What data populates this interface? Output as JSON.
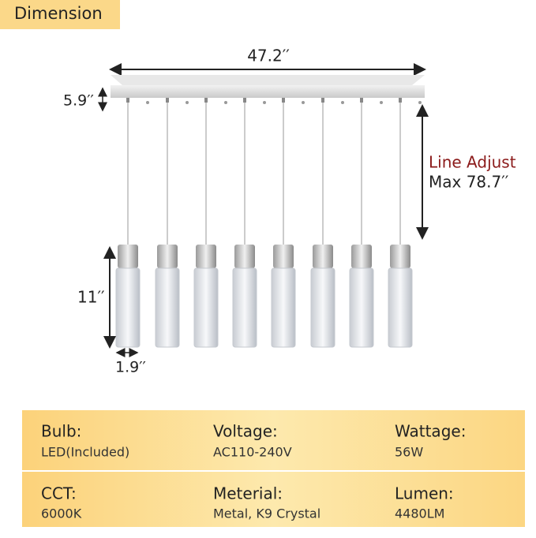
{
  "header": {
    "title": "Dimension"
  },
  "dimensions": {
    "width": "47.2′′",
    "canopy_height": "5.9′′",
    "line_adjust_title": "Line Adjust",
    "line_adjust_value": "Max 78.7′′",
    "pendant_length": "11′′",
    "pendant_diameter": "1.9′′"
  },
  "specs": [
    [
      {
        "label": "Bulb:",
        "value": "LED(Included)"
      },
      {
        "label": "Voltage:",
        "value": "AC110-240V"
      },
      {
        "label": "Wattage:",
        "value": "56W"
      }
    ],
    [
      {
        "label": "CCT:",
        "value": "6000K"
      },
      {
        "label": "Meterial:",
        "value": "Metal, K9 Crystal"
      },
      {
        "label": "Lumen:",
        "value": "4480LM"
      }
    ]
  ]
}
